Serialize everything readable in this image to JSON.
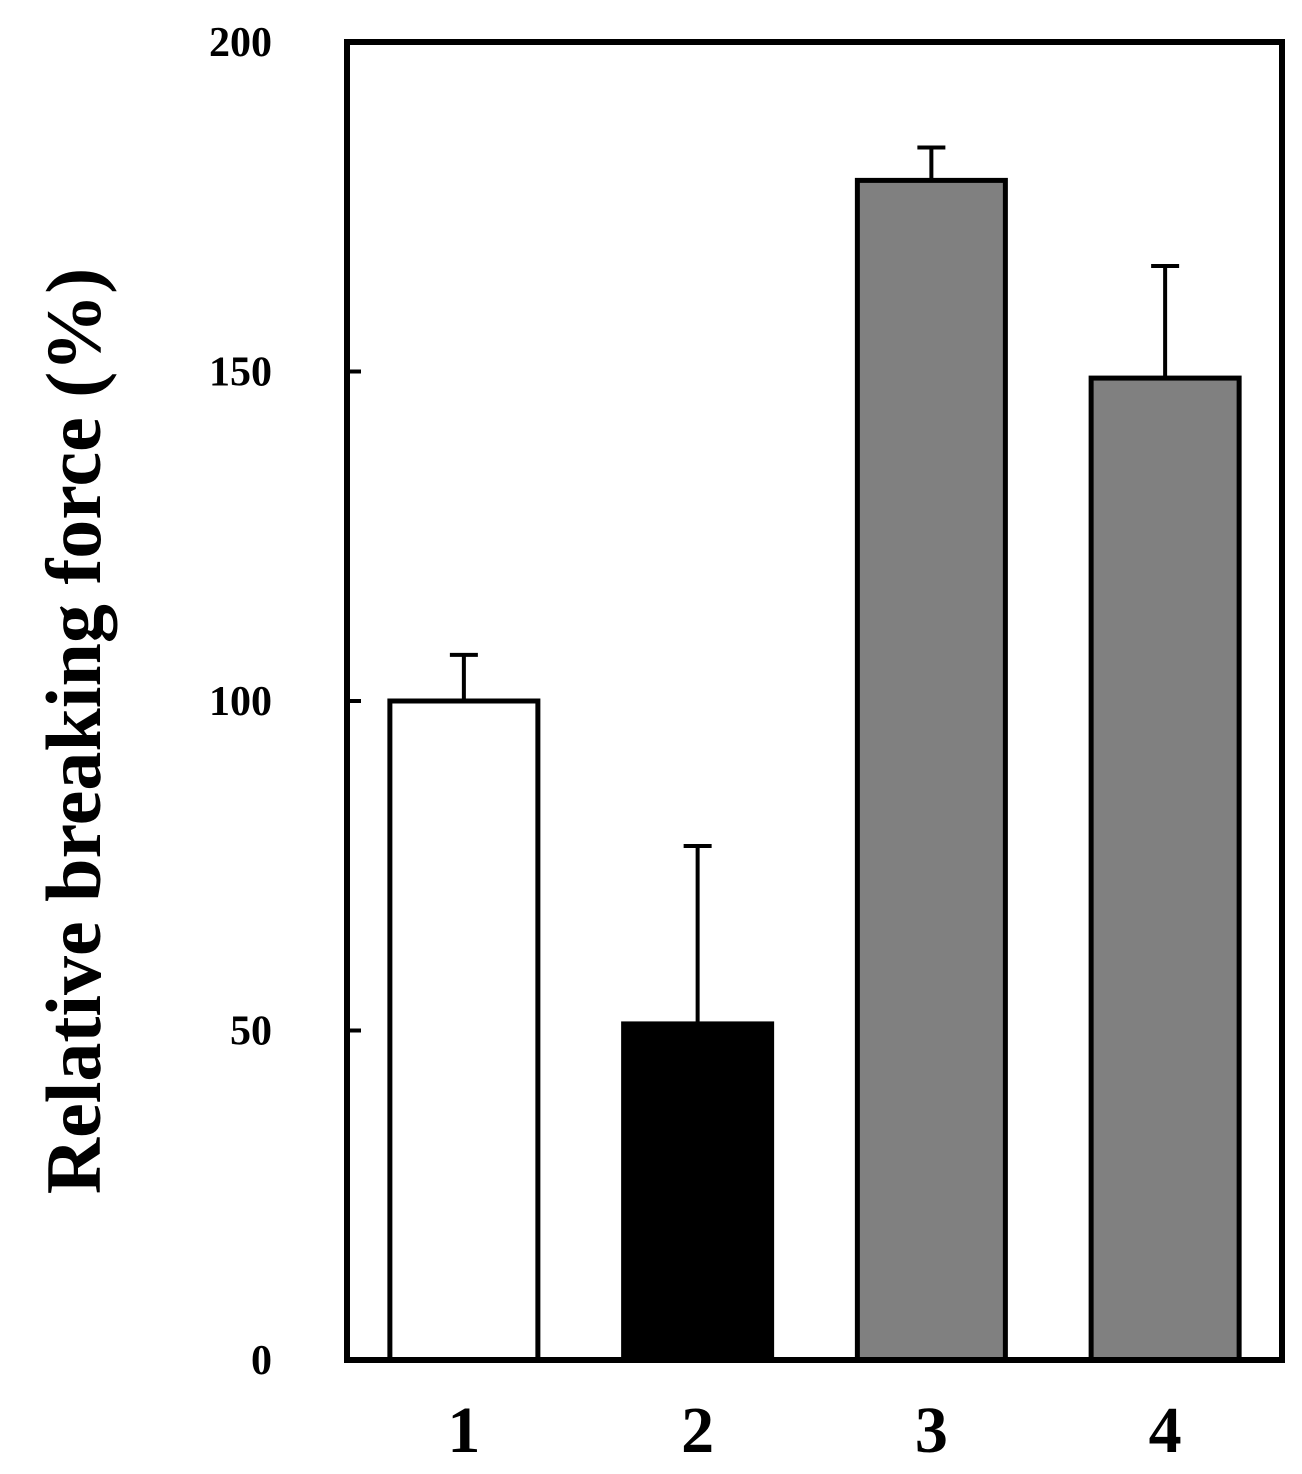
{
  "chart_data": {
    "type": "bar",
    "categories": [
      "1",
      "2",
      "3",
      "4"
    ],
    "values": [
      100,
      51,
      179,
      149
    ],
    "errors": [
      7,
      27,
      5,
      17
    ],
    "bar_colors": [
      "#ffffff",
      "#000000",
      "#808080",
      "#808080"
    ],
    "title": "",
    "xlabel": "",
    "ylabel": "Relative breaking force (%)",
    "ylim": [
      0,
      200
    ],
    "yticks": [
      0,
      50,
      100,
      150,
      200
    ],
    "ytick_labels": [
      "0",
      "50",
      "100",
      "150",
      "200"
    ],
    "grid": false,
    "legend": null
  }
}
